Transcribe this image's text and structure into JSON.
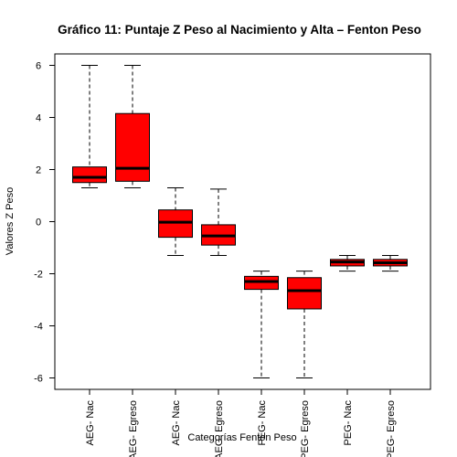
{
  "chart_data": {
    "type": "box",
    "title": "Gráfico 11: Puntaje Z Peso al Nacimiento y Alta – Fenton Peso",
    "xlabel": "Categorías Fenton Peso",
    "ylabel": "Valores Z Peso",
    "ylim": [
      -6.5,
      6.5
    ],
    "yticks": [
      -6,
      -4,
      -2,
      0,
      2,
      4,
      6
    ],
    "grid": false,
    "box_color": "#ff0000",
    "categories": [
      "AEG- Nac",
      "AEG- Egreso",
      "AEG- Nac",
      "AEG- Egreso",
      "PEG- Nac",
      "PEG- Egreso",
      "PEG- Nac",
      "PEG- Egreso"
    ],
    "boxes": [
      {
        "min": 1.3,
        "q1": 1.5,
        "median": 1.7,
        "q3": 2.1,
        "max": 6.0
      },
      {
        "min": 1.3,
        "q1": 1.55,
        "median": 2.05,
        "q3": 4.15,
        "max": 6.0
      },
      {
        "min": -1.3,
        "q1": -0.6,
        "median": -0.02,
        "q3": 0.45,
        "max": 1.3
      },
      {
        "min": -1.3,
        "q1": -0.9,
        "median": -0.55,
        "q3": -0.12,
        "max": 1.25
      },
      {
        "min": -6.0,
        "q1": -2.6,
        "median": -2.3,
        "q3": -2.1,
        "max": -1.9
      },
      {
        "min": -6.0,
        "q1": -3.35,
        "median": -2.65,
        "q3": -2.15,
        "max": -1.9
      },
      {
        "min": -1.9,
        "q1": -1.7,
        "median": -1.55,
        "q3": -1.45,
        "max": -1.3
      },
      {
        "min": -1.9,
        "q1": -1.7,
        "median": -1.58,
        "q3": -1.45,
        "max": -1.3
      }
    ]
  }
}
